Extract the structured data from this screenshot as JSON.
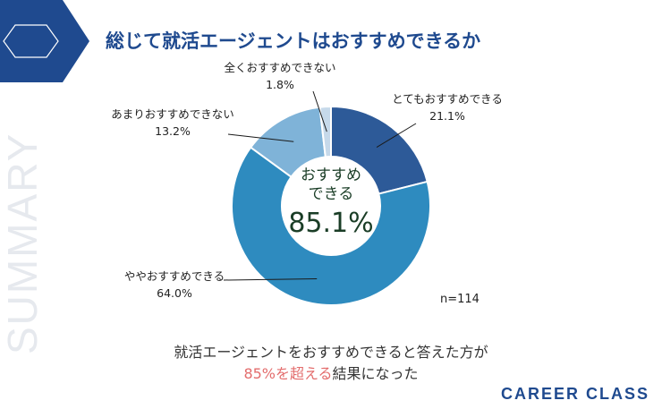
{
  "title": "総じて就活エージェントはおすすめできるか",
  "side_text": "SUMMARY",
  "brand": "CAREER CLASS",
  "sample_size": "n=114",
  "center": {
    "line1": "おすすめ",
    "line2": "できる",
    "value": "85.1%"
  },
  "conclusion": {
    "line1": "就活エージェントをおすすめできると答えた方が",
    "highlight": "85%を超える",
    "rest": "結果になった"
  },
  "colors": {
    "accent": "#1f4a8f",
    "highlight": "#e36c6c"
  },
  "chart_data": {
    "type": "pie",
    "categories": [
      "とてもおすすめできる",
      "ややおすすめできる",
      "あまりおすすめできない",
      "全くおすすめできない"
    ],
    "values": [
      21.1,
      64.0,
      13.2,
      1.8
    ],
    "value_labels": [
      "21.1%",
      "64.0%",
      "13.2%",
      "1.8%"
    ],
    "colors": [
      "#2d5a98",
      "#2e8bbf",
      "#7fb3d8",
      "#c6d9ea"
    ]
  }
}
